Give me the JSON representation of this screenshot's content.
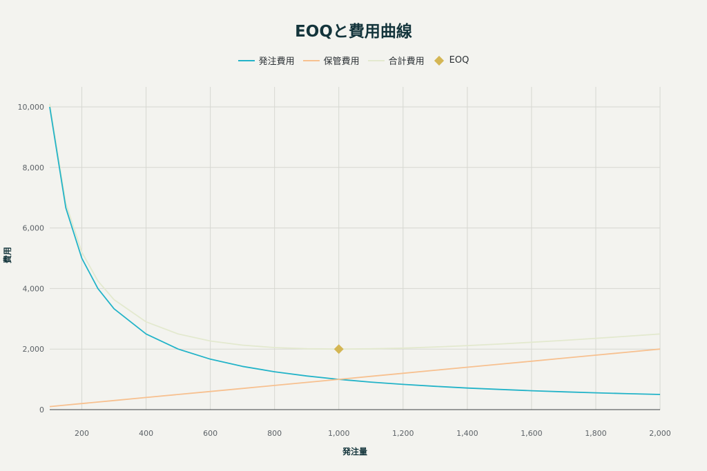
{
  "chart_data": {
    "type": "line",
    "title": "EOQと費用曲線",
    "xlabel": "発注量",
    "ylabel": "費用",
    "xlim": [
      100,
      2000
    ],
    "ylim": [
      0,
      10000
    ],
    "x_ticks": [
      200,
      400,
      600,
      800,
      1000,
      1200,
      1400,
      1600,
      1800,
      2000
    ],
    "x_tick_labels": [
      "200",
      "400",
      "600",
      "800",
      "1,000",
      "1,200",
      "1,400",
      "1,600",
      "1,800",
      "2,000"
    ],
    "y_ticks": [
      0,
      2000,
      4000,
      6000,
      8000,
      10000
    ],
    "y_tick_labels": [
      "0",
      "2,000",
      "4,000",
      "6,000",
      "8,000",
      "10,000"
    ],
    "grid": true,
    "legend_position": "top-center",
    "x": [
      100,
      150,
      200,
      250,
      300,
      400,
      500,
      600,
      700,
      800,
      900,
      1000,
      1100,
      1200,
      1300,
      1400,
      1500,
      1600,
      1700,
      1800,
      1900,
      2000
    ],
    "series": [
      {
        "name": "発注費用",
        "color": "#22b3c8",
        "values": [
          10000,
          6667,
          5000,
          4000,
          3333,
          2500,
          2000,
          1667,
          1429,
          1250,
          1111,
          1000,
          909,
          833,
          769,
          714,
          667,
          625,
          588,
          556,
          526,
          500
        ]
      },
      {
        "name": "保管費用",
        "color": "#f7c08f",
        "values": [
          100,
          150,
          200,
          250,
          300,
          400,
          500,
          600,
          700,
          800,
          900,
          1000,
          1100,
          1200,
          1300,
          1400,
          1500,
          1600,
          1700,
          1800,
          1900,
          2000
        ]
      },
      {
        "name": "合計費用",
        "color": "#e3e9cf",
        "values": [
          10100,
          6817,
          5200,
          4250,
          3633,
          2900,
          2500,
          2267,
          2129,
          2050,
          2011,
          2000,
          2009,
          2033,
          2069,
          2114,
          2167,
          2225,
          2288,
          2356,
          2426,
          2500
        ]
      }
    ],
    "markers": [
      {
        "name": "EOQ",
        "x": 1000,
        "y": 2000,
        "color": "#d4b654",
        "shape": "diamond"
      }
    ]
  }
}
